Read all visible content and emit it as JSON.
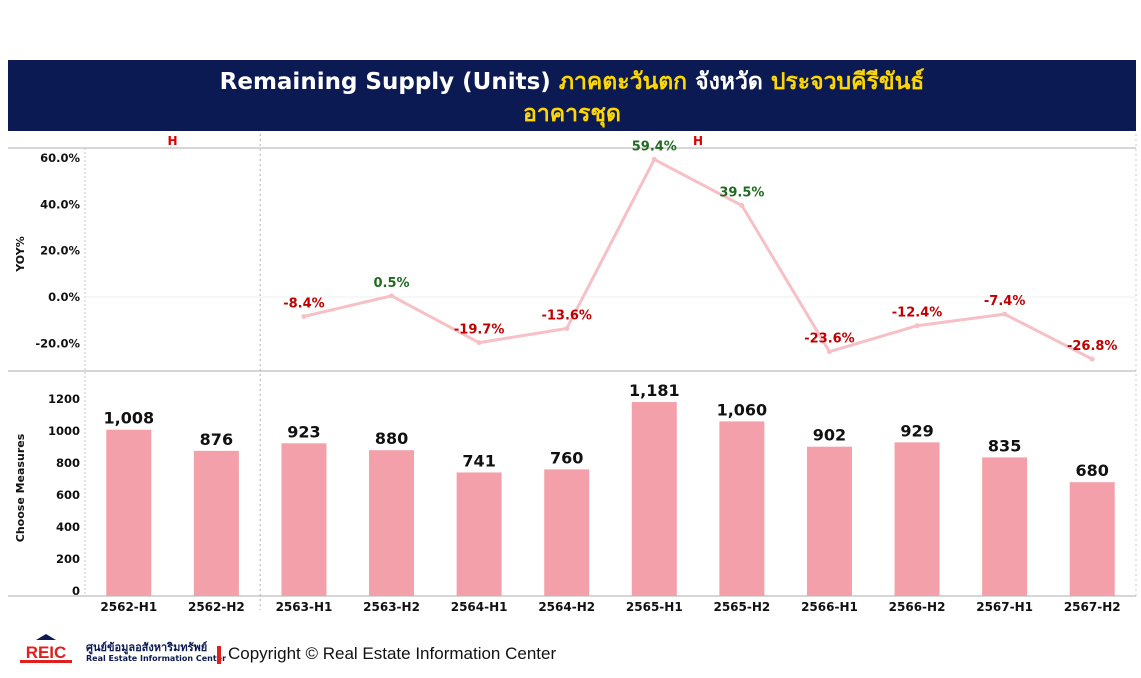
{
  "title": {
    "part1": "Remaining Supply (Units) ",
    "region": "ภาคตะวันตก",
    "mid": " จังหวัด ",
    "province": "ประจวบคีรีขันธ์",
    "line2": "อาคารชุด"
  },
  "colors": {
    "title_bg": "#0b1a52",
    "highlight": "#ffd700",
    "bar": "#f4a0aa",
    "line": "#f6c0c6",
    "positive": "#1f6b1f",
    "negative": "#c00000",
    "group_label": "#e00000"
  },
  "chart_data": [
    {
      "type": "line",
      "ylabel": "YOY%",
      "ylim": [
        -25,
        62
      ],
      "yticks": [
        60,
        40,
        20,
        0,
        -20
      ],
      "ytick_labels": [
        "60.0%",
        "40.0%",
        "20.0%",
        "0.0%",
        "-20.0%"
      ],
      "groups": [
        "H",
        "H"
      ],
      "categories": [
        "2562-H1",
        "2562-H2",
        "2563-H1",
        "2563-H2",
        "2564-H1",
        "2564-H2",
        "2565-H1",
        "2565-H2",
        "2566-H1",
        "2566-H2",
        "2567-H1",
        "2567-H2"
      ],
      "values": [
        null,
        null,
        -8.4,
        0.5,
        -19.7,
        -13.6,
        59.4,
        39.5,
        -23.6,
        -12.4,
        -7.4,
        -26.8
      ],
      "labels": [
        "",
        "",
        "-8.4%",
        "0.5%",
        "-19.7%",
        "-13.6%",
        "59.4%",
        "39.5%",
        "-23.6%",
        "-12.4%",
        "-7.4%",
        "-26.8%"
      ]
    },
    {
      "type": "bar",
      "ylabel": "Choose Measures",
      "ylim": [
        0,
        1300
      ],
      "yticks": [
        1200,
        1000,
        800,
        600,
        400,
        200,
        0
      ],
      "ytick_labels": [
        "1200",
        "1000",
        "800",
        "600",
        "400",
        "200",
        "0"
      ],
      "categories": [
        "2562-H1",
        "2562-H2",
        "2563-H1",
        "2563-H2",
        "2564-H1",
        "2564-H2",
        "2565-H1",
        "2565-H2",
        "2566-H1",
        "2566-H2",
        "2567-H1",
        "2567-H2"
      ],
      "values": [
        1008,
        876,
        923,
        880,
        741,
        760,
        1181,
        1060,
        902,
        929,
        835,
        680
      ],
      "labels": [
        "1,008",
        "876",
        "923",
        "880",
        "741",
        "760",
        "1,181",
        "1,060",
        "902",
        "929",
        "835",
        "680"
      ]
    }
  ],
  "footer": {
    "logo_text": "REIC",
    "org_th": "ศูนย์ข้อมูลอสังหาริมทรัพย์",
    "org_en": "Real Estate Information Center",
    "copyright": "Copyright © Real Estate Information Center"
  }
}
